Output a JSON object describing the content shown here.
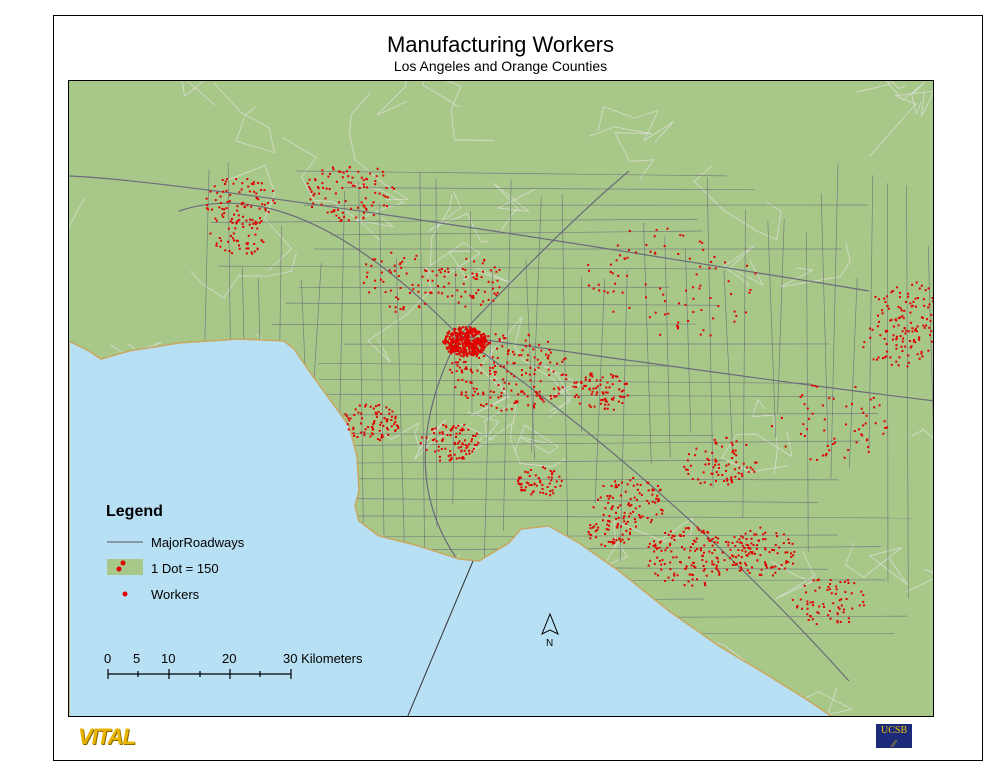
{
  "title": "Manufacturing Workers",
  "subtitle": "Los Angeles and Orange Counties",
  "legend": {
    "title": "Legend",
    "items": [
      {
        "label": "MajorRoadways",
        "symbol": "line",
        "color": "#6b6b7a"
      },
      {
        "label": "1 Dot = 150",
        "symbol": "dot-density",
        "color": "#e00000"
      },
      {
        "label": "Workers",
        "symbol": "dot",
        "color": "#e00000"
      }
    ]
  },
  "scale_bar": {
    "labels": [
      "0",
      "5",
      "10",
      "20",
      "30 Kilometers"
    ]
  },
  "north_arrow": {
    "label": "N"
  },
  "logos": {
    "left": "VITAL",
    "right": "UCSB"
  },
  "colors": {
    "land": "#a8c88a",
    "ocean": "#b8e0f4",
    "roads": "#6b6b7a",
    "workers": "#e00000",
    "boundaries": "#d8dcd0"
  }
}
